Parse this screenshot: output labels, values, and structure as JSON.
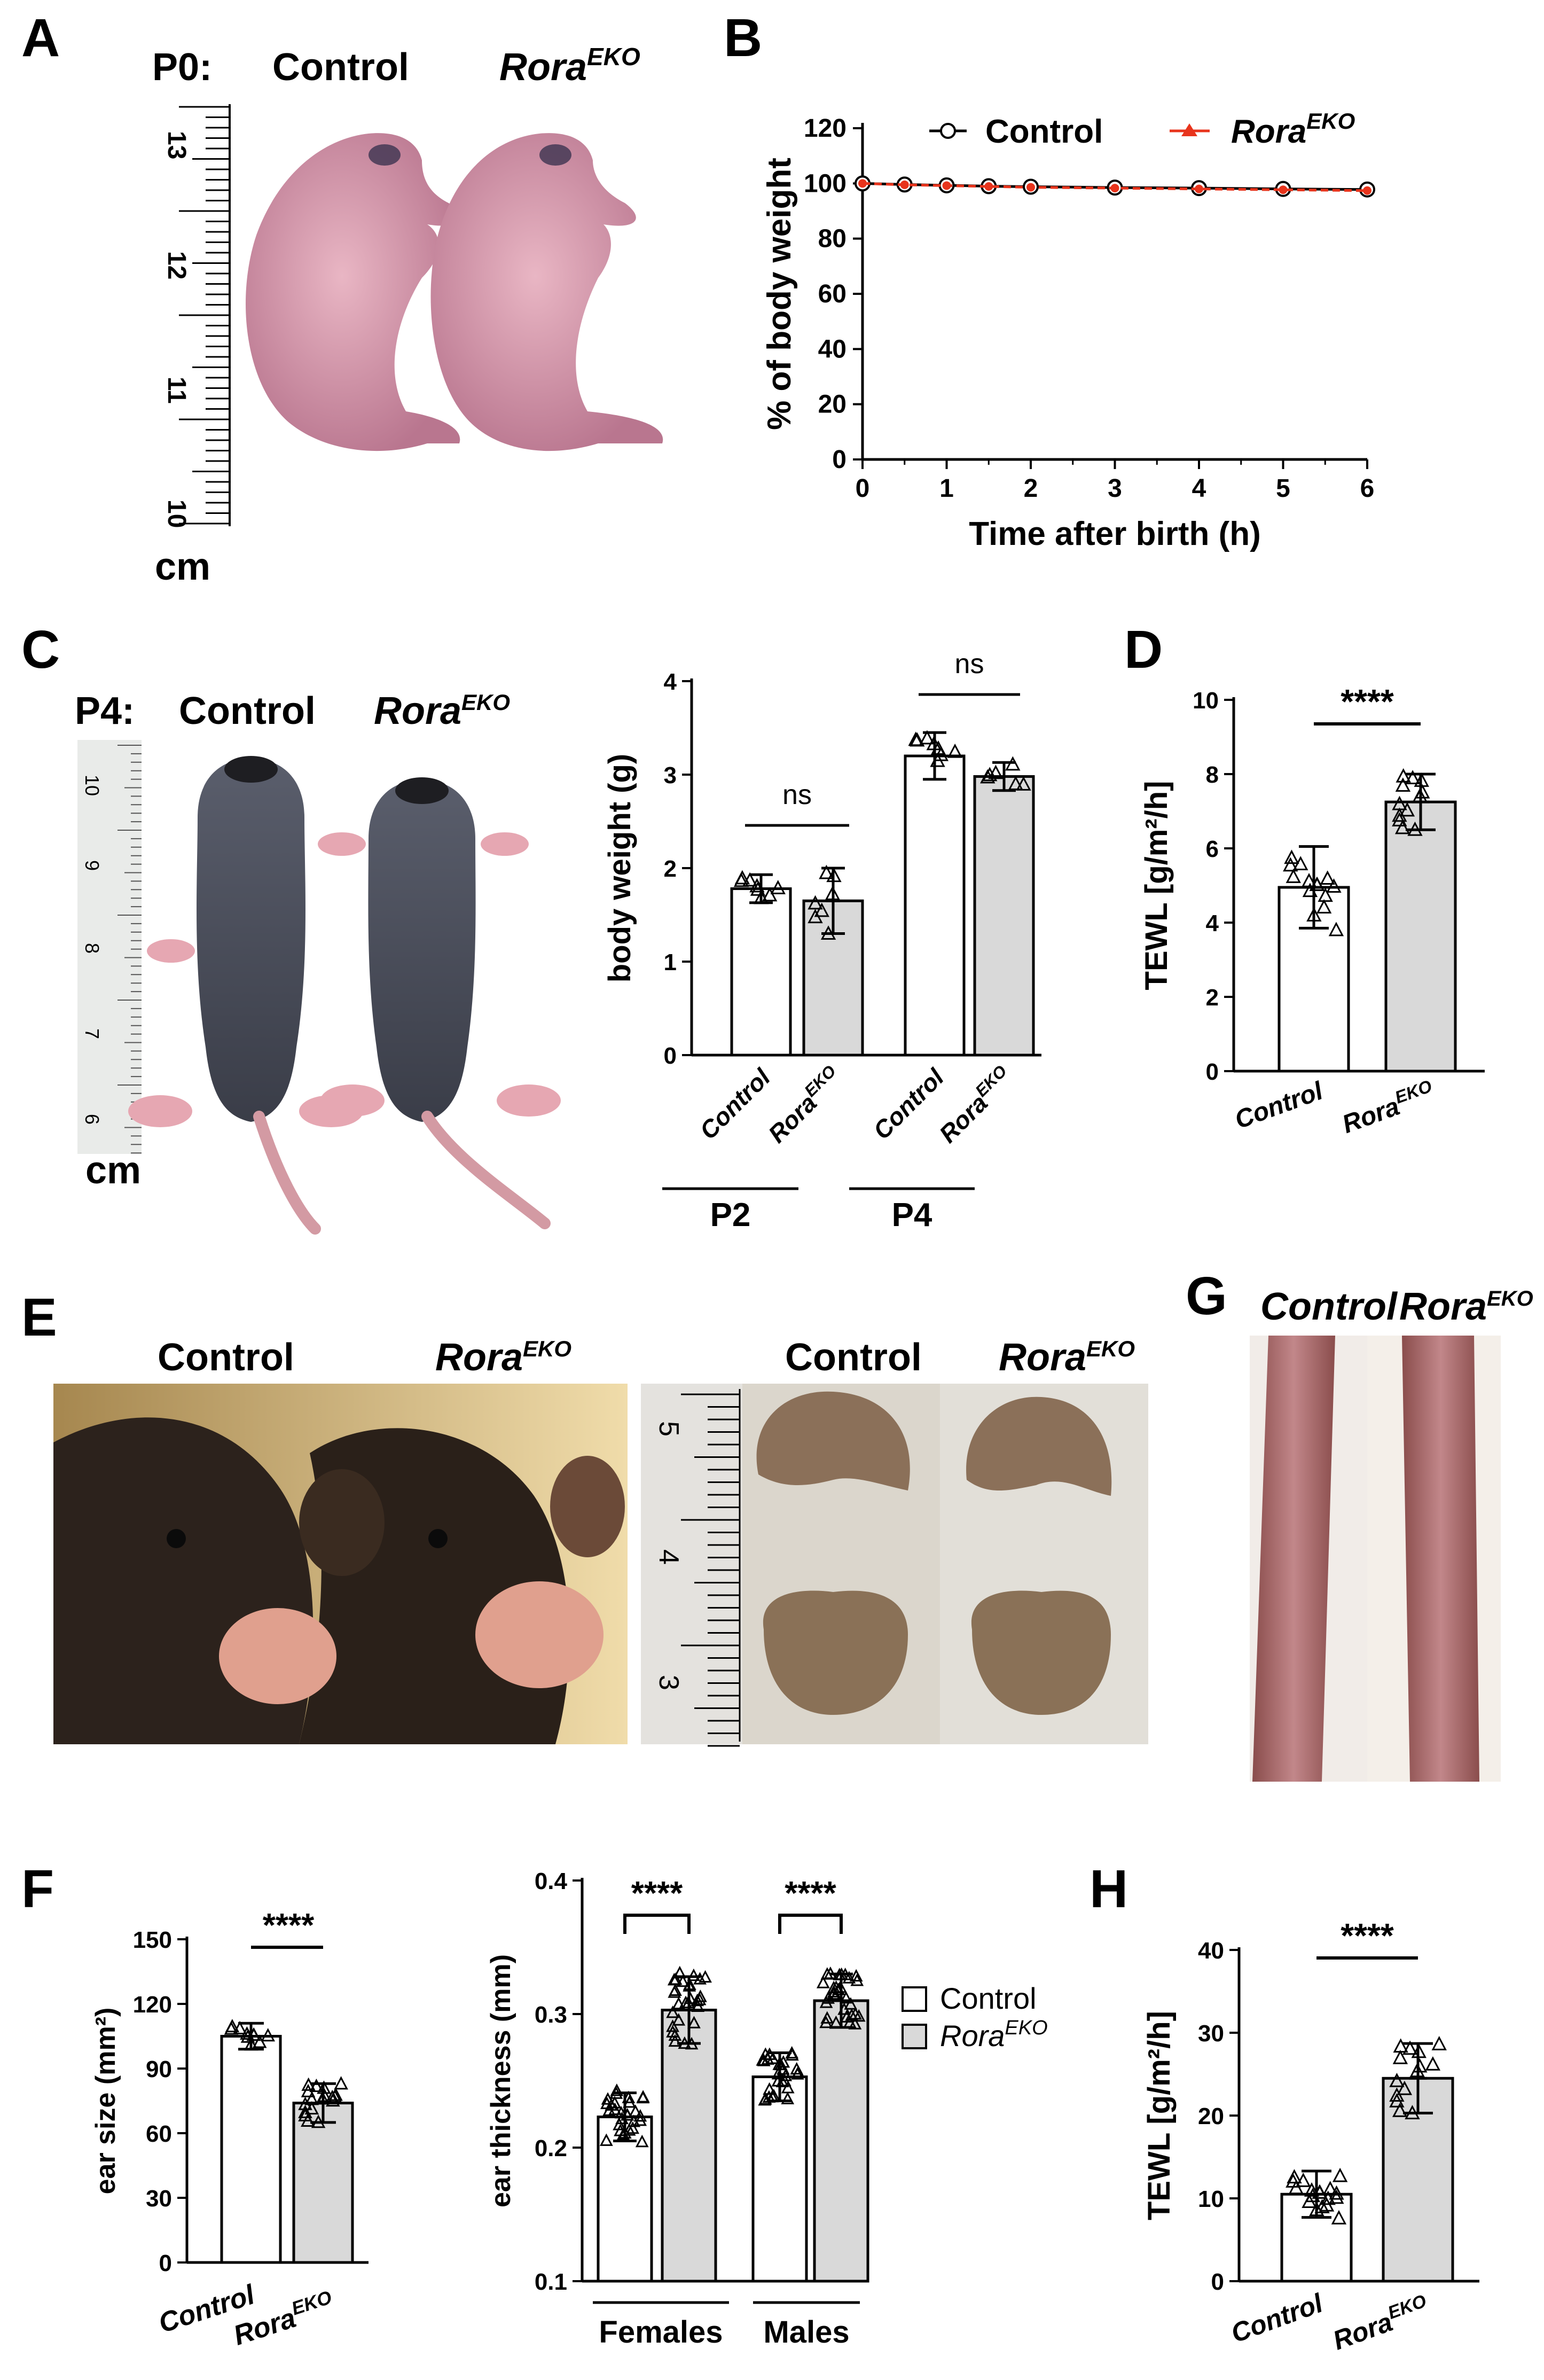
{
  "panels": {
    "A": {
      "label": "A",
      "stage": "P0:",
      "control": "Control",
      "mutant": {
        "base": "Rora",
        "sup": "EKO"
      },
      "ruler": {
        "ticks": [
          "13",
          "12",
          "11",
          "10"
        ],
        "unit": "cm"
      }
    },
    "B": {
      "label": "B"
    },
    "C": {
      "label": "C",
      "stage": "P4:",
      "control": "Control",
      "mutant": {
        "base": "Rora",
        "sup": "EKO"
      },
      "ruler": {
        "ticks": [
          "10",
          "9",
          "8",
          "7",
          "6"
        ],
        "unit": "cm"
      }
    },
    "D": {
      "label": "D"
    },
    "E": {
      "label": "E",
      "left": {
        "control": "Control",
        "mutant": {
          "base": "Rora",
          "sup": "EKO"
        }
      },
      "right": {
        "control": "Control",
        "mutant": {
          "base": "Rora",
          "sup": "EKO"
        }
      },
      "ruler": {
        "ticks": [
          "5",
          "4",
          "3"
        ]
      }
    },
    "F": {
      "label": "F"
    },
    "G": {
      "label": "G",
      "control": "Control",
      "mutant": {
        "base": "Rora",
        "sup": "EKO"
      }
    },
    "H": {
      "label": "H"
    }
  },
  "legend_F": {
    "control": "Control",
    "mutant": {
      "base": "Rora",
      "sup": "EKO"
    }
  },
  "colors": {
    "control_fill": "#ffffff",
    "mutant_fill": "#d9d9d9",
    "series_control": "#000000",
    "series_mutant": "#e8341c"
  },
  "chart_data": [
    {
      "id": "B",
      "type": "line",
      "xlabel": "Time after birth (h)",
      "ylabel": "% of body weight",
      "xlim": [
        0,
        6
      ],
      "ylim": [
        0,
        120
      ],
      "xticks": [
        0,
        1,
        2,
        3,
        4,
        5,
        6
      ],
      "yticks": [
        0,
        20,
        40,
        60,
        80,
        100,
        120
      ],
      "legend": "top",
      "series": [
        {
          "name": "Control",
          "x": [
            0,
            0.5,
            1,
            1.5,
            2,
            3,
            4,
            5,
            6
          ],
          "y": [
            100,
            99.6,
            99.3,
            99,
            98.8,
            98.5,
            98.3,
            98,
            97.8
          ]
        },
        {
          "name": "Rora<sup>EKO</sup>",
          "x": [
            0,
            0.5,
            1,
            1.5,
            2,
            3,
            4,
            5,
            6
          ],
          "y": [
            100,
            99.5,
            99.2,
            98.9,
            98.6,
            98.3,
            98,
            97.7,
            97.4
          ]
        }
      ]
    },
    {
      "id": "C",
      "type": "bar",
      "ylabel": "body weight (g)",
      "ylim": [
        0,
        4
      ],
      "yticks": [
        0,
        1,
        2,
        3,
        4
      ],
      "categories": [
        "Control",
        "RoraEKO",
        "Control",
        "RoraEKO"
      ],
      "groups": [
        "P2",
        "P4"
      ],
      "values": [
        1.78,
        1.65,
        3.2,
        2.98
      ],
      "sd": [
        0.15,
        0.35,
        0.25,
        0.15
      ],
      "significance": [
        "ns",
        "ns"
      ]
    },
    {
      "id": "D",
      "type": "bar",
      "ylabel": "TEWL [g/m²/h]",
      "ylim": [
        0,
        10
      ],
      "yticks": [
        0,
        2,
        4,
        6,
        8,
        10
      ],
      "categories": [
        "Control",
        "RoraEKO"
      ],
      "values": [
        4.95,
        7.25
      ],
      "sd": [
        1.1,
        0.75
      ],
      "significance": [
        "****"
      ]
    },
    {
      "id": "F1",
      "type": "bar",
      "ylabel": "ear size (mm²)",
      "ylim": [
        0,
        150
      ],
      "yticks": [
        0,
        30,
        60,
        90,
        120,
        150
      ],
      "categories": [
        "Control",
        "RoraEKO"
      ],
      "values": [
        105,
        74
      ],
      "sd": [
        6,
        9
      ],
      "significance": [
        "****"
      ]
    },
    {
      "id": "F2",
      "type": "bar",
      "ylabel": "ear thickness (mm)",
      "ylim": [
        0.1,
        0.4
      ],
      "yticks": [
        0.1,
        0.2,
        0.3,
        0.4
      ],
      "categories": [
        "Control",
        "RoraEKO",
        "Control",
        "RoraEKO"
      ],
      "groups": [
        "Females",
        "Males"
      ],
      "values": [
        0.223,
        0.303,
        0.253,
        0.31
      ],
      "sd": [
        0.018,
        0.025,
        0.018,
        0.02
      ],
      "significance": [
        "****",
        "****"
      ]
    },
    {
      "id": "H",
      "type": "bar",
      "ylabel": "TEWL [g/m²/h]",
      "ylim": [
        0,
        40
      ],
      "yticks": [
        0,
        10,
        20,
        30,
        40
      ],
      "categories": [
        "Control",
        "RoraEKO"
      ],
      "values": [
        10.5,
        24.5
      ],
      "sd": [
        2.8,
        4.2
      ],
      "significance": [
        "****"
      ]
    }
  ]
}
